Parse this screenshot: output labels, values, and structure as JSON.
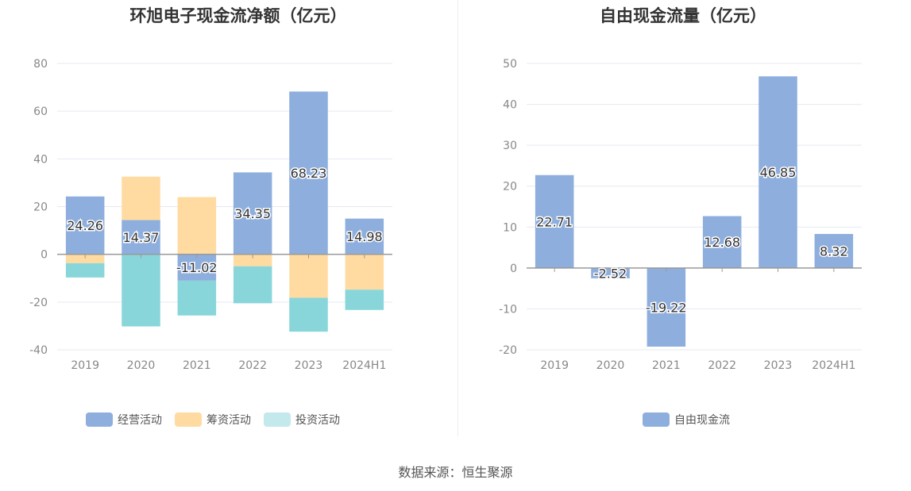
{
  "source_text": "数据来源：恒生聚源",
  "chart_data": [
    {
      "type": "bar",
      "title": "环旭电子现金流净额（亿元）",
      "categories": [
        "2019",
        "2020",
        "2021",
        "2022",
        "2023",
        "2024H1"
      ],
      "ylim": [
        -40,
        80
      ],
      "yticks": [
        -40,
        -20,
        0,
        20,
        40,
        60,
        80
      ],
      "stacked": true,
      "grid": true,
      "legend_position": "bottom",
      "series": [
        {
          "name": "经营活动",
          "color": "#8eaedd",
          "values": [
            24.26,
            14.37,
            -11.02,
            34.35,
            68.23,
            14.98
          ],
          "labels": [
            "24.26",
            "14.37",
            "-11.02",
            "34.35",
            "68.23",
            "14.98"
          ]
        },
        {
          "name": "筹资活动",
          "color": "#ffdba1",
          "values": [
            -3.7,
            18.2,
            24.0,
            -5.0,
            -18.2,
            -14.8
          ]
        },
        {
          "name": "投资活动",
          "color": "#88d6da",
          "values": [
            -6.0,
            -30.2,
            -14.6,
            -15.5,
            -14.2,
            -8.5
          ]
        }
      ]
    },
    {
      "type": "bar",
      "title": "自由现金流量（亿元）",
      "categories": [
        "2019",
        "2020",
        "2021",
        "2022",
        "2023",
        "2024H1"
      ],
      "ylim": [
        -20,
        50
      ],
      "yticks": [
        -20,
        -10,
        0,
        10,
        20,
        30,
        40,
        50
      ],
      "grid": true,
      "legend_position": "bottom",
      "series": [
        {
          "name": "自由现金流",
          "color": "#8eaedd",
          "values": [
            22.71,
            -2.52,
            -19.22,
            12.68,
            46.85,
            8.32
          ],
          "labels": [
            "22.71",
            "-2.52",
            "-19.22",
            "12.68",
            "46.85",
            "8.32"
          ]
        }
      ]
    }
  ]
}
